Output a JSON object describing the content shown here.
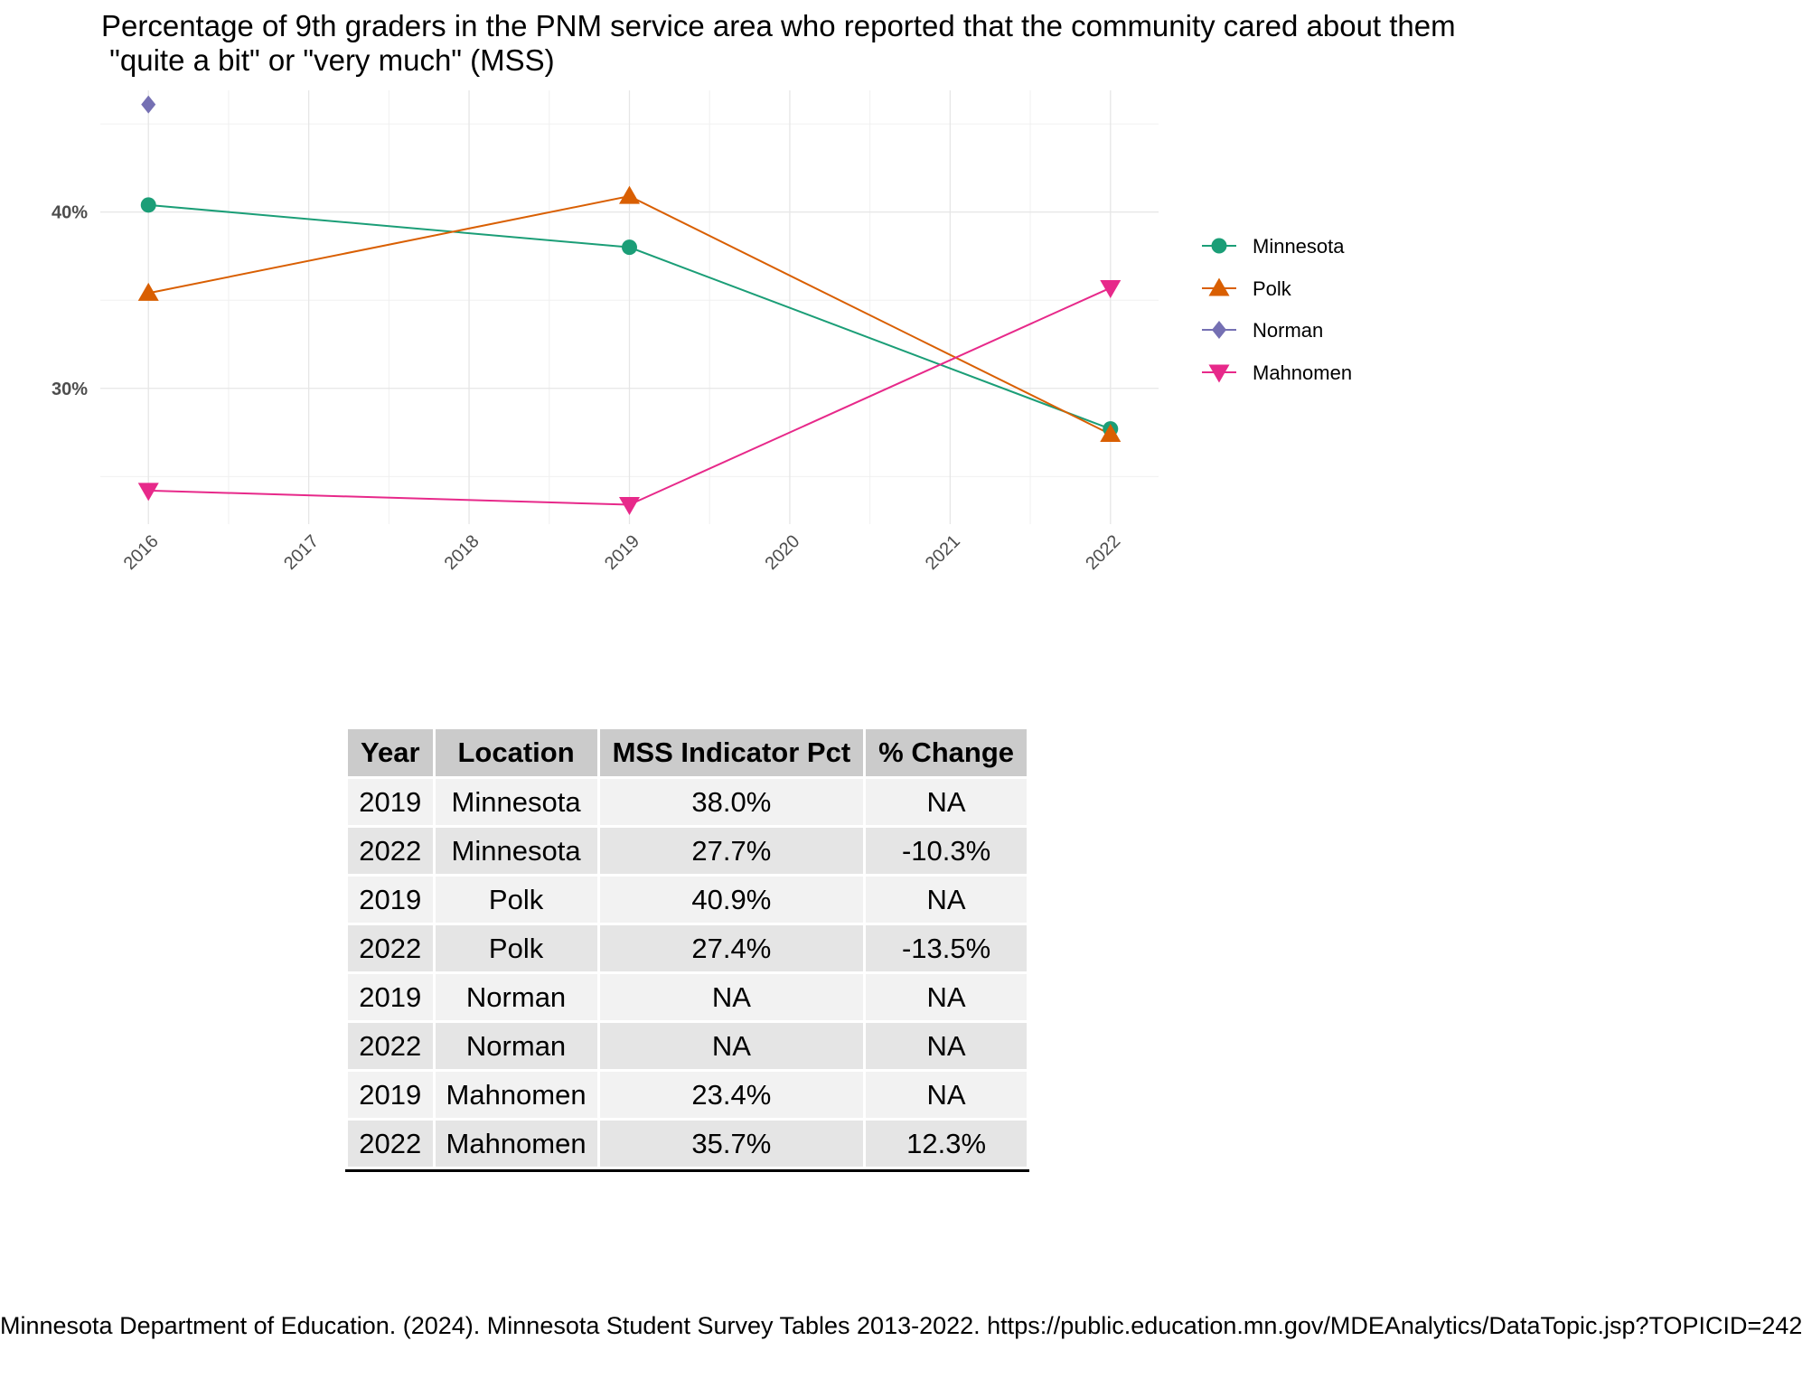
{
  "title": "Percentage of 9th graders in the PNM service area who reported that the community cared about them\n \"quite a bit\" or \"very much\" (MSS)",
  "chart_data": {
    "type": "line",
    "title": "Percentage of 9th graders in the PNM service area who reported that the community cared about them\n \"quite a bit\" or \"very much\" (MSS)",
    "xlabel": "",
    "ylabel": "",
    "x": [
      2016,
      2017,
      2018,
      2019,
      2020,
      2021,
      2022
    ],
    "x_tick_labels": [
      "2016",
      "2017",
      "2018",
      "2019",
      "2020",
      "2021",
      "2022"
    ],
    "y_ticks": [
      30,
      40
    ],
    "y_tick_labels": [
      "30%",
      "40%"
    ],
    "xlim": [
      2015.7,
      2022.3
    ],
    "ylim": [
      22.3,
      46.9
    ],
    "grid": true,
    "legend_position": "right",
    "series": [
      {
        "name": "Minnesota",
        "color": "#1B9E77",
        "marker": "circle",
        "points": [
          [
            2016,
            40.4
          ],
          [
            2019,
            38.0
          ],
          [
            2022,
            27.7
          ]
        ]
      },
      {
        "name": "Polk",
        "color": "#D95F02",
        "marker": "triangle-up",
        "points": [
          [
            2016,
            35.4
          ],
          [
            2019,
            40.9
          ],
          [
            2022,
            27.4
          ]
        ]
      },
      {
        "name": "Norman",
        "color": "#7570B3",
        "marker": "diamond",
        "points": [
          [
            2016,
            46.1
          ]
        ]
      },
      {
        "name": "Mahnomen",
        "color": "#E7298A",
        "marker": "triangle-down",
        "points": [
          [
            2016,
            24.2
          ],
          [
            2019,
            23.4
          ],
          [
            2022,
            35.7
          ]
        ]
      }
    ]
  },
  "table": {
    "headers": [
      "Year",
      "Location",
      "MSS Indicator Pct",
      "% Change"
    ],
    "rows": [
      [
        "2019",
        "Minnesota",
        "38.0%",
        "NA"
      ],
      [
        "2022",
        "Minnesota",
        "27.7%",
        "-10.3%"
      ],
      [
        "2019",
        "Polk",
        "40.9%",
        "NA"
      ],
      [
        "2022",
        "Polk",
        "27.4%",
        "-13.5%"
      ],
      [
        "2019",
        "Norman",
        "NA",
        "NA"
      ],
      [
        "2022",
        "Norman",
        "NA",
        "NA"
      ],
      [
        "2019",
        "Mahnomen",
        "23.4%",
        "NA"
      ],
      [
        "2022",
        "Mahnomen",
        "35.7%",
        "12.3%"
      ]
    ]
  },
  "source": "Minnesota Department of Education. (2024). Minnesota Student Survey Tables 2013-2022. https://public.education.mn.gov/MDEAnalytics/DataTopic.jsp?TOPICID=242"
}
